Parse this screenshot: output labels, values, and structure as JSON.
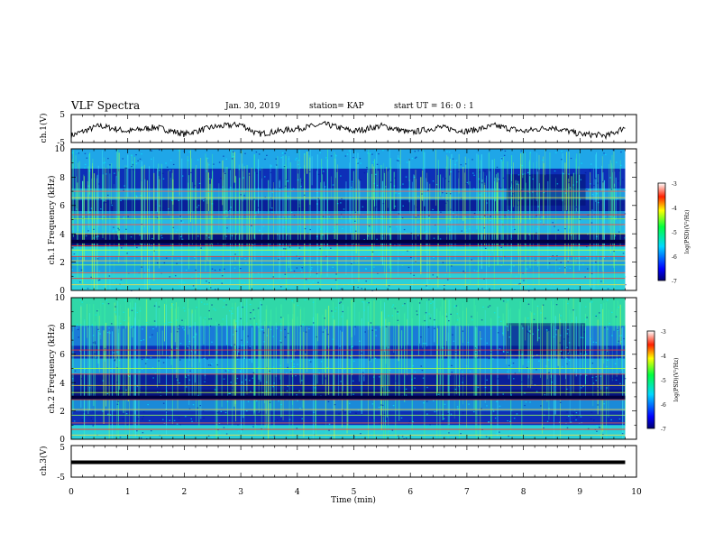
{
  "header": {
    "title": "VLF Spectra",
    "date": "Jan. 30, 2019",
    "station": "station= KAP",
    "start": "start UT =   16: 0  : 1"
  },
  "chart_data": [
    {
      "type": "line",
      "panel": "ch1-voltage",
      "ylabel": "ch.1(V)",
      "ylim": [
        -5,
        5
      ],
      "yticks": [
        "5",
        "-5"
      ],
      "x_range": [
        0,
        9.8
      ],
      "summary_points": [
        [
          0,
          -2.5
        ],
        [
          0.5,
          1
        ],
        [
          1,
          -1
        ],
        [
          1.5,
          0.5
        ],
        [
          2,
          -2
        ],
        [
          2.5,
          0.5
        ],
        [
          3,
          1.5
        ],
        [
          3.3,
          -2
        ],
        [
          4,
          0
        ],
        [
          4.5,
          1.5
        ],
        [
          5,
          -1
        ],
        [
          5.5,
          1
        ],
        [
          6,
          -1.5
        ],
        [
          6.5,
          0.5
        ],
        [
          7,
          -1
        ],
        [
          7.5,
          1
        ],
        [
          8,
          -1
        ],
        [
          8.5,
          0.5
        ],
        [
          9,
          -2
        ],
        [
          9.5,
          -2.5
        ],
        [
          9.8,
          0.5
        ]
      ],
      "color": "#000000"
    },
    {
      "type": "heatmap",
      "panel": "ch1-spectrogram",
      "ylabel": "ch.1 Frequency (kHz)",
      "ylim": [
        0,
        10
      ],
      "yticks": [
        "0",
        "2",
        "4",
        "6",
        "8",
        "10"
      ],
      "xlim": [
        0,
        9.8
      ],
      "colorbar": {
        "label": "log(PSD)(V²/Hz)",
        "range": [
          -7,
          -3
        ],
        "ticks": [
          "-3",
          "-4",
          "-5",
          "-6",
          "-7"
        ]
      }
    },
    {
      "type": "heatmap",
      "panel": "ch2-spectrogram",
      "ylabel": "ch.2 Frequency (kHz)",
      "ylim": [
        0,
        10
      ],
      "yticks": [
        "0",
        "2",
        "4",
        "6",
        "8",
        "10"
      ],
      "xlim": [
        0,
        9.8
      ],
      "colorbar": {
        "label": "log(PSD)(V²/Hz)",
        "range": [
          -7,
          -3
        ],
        "ticks": [
          "-3",
          "-4",
          "-5",
          "-6",
          "-7"
        ]
      }
    },
    {
      "type": "line",
      "panel": "ch3-voltage",
      "ylabel": "ch.3(V)",
      "ylim": [
        -5,
        5
      ],
      "yticks": [
        "5",
        "-5"
      ],
      "xlabel": "Time  (min)",
      "xticks": [
        "0",
        "1",
        "2",
        "3",
        "4",
        "5",
        "6",
        "7",
        "8",
        "9",
        "10"
      ],
      "xlim": [
        0,
        10
      ],
      "points": [
        [
          0,
          0
        ],
        [
          9.8,
          0
        ]
      ],
      "color": "#000000"
    }
  ]
}
